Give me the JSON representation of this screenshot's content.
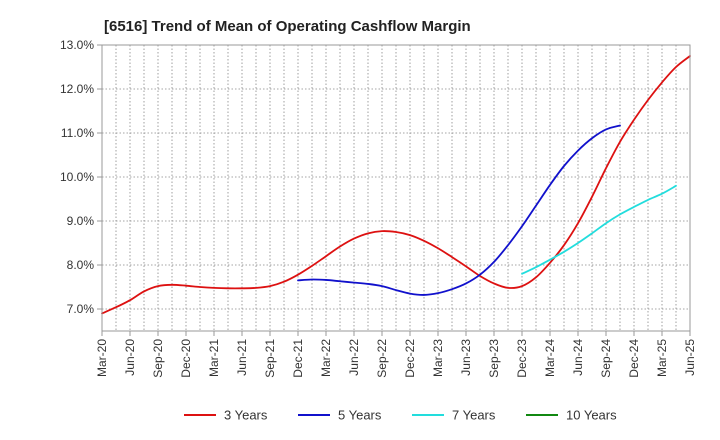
{
  "chart_data": {
    "type": "line",
    "title": "[6516]  Trend of Mean of Operating Cashflow Margin",
    "xlabel": "",
    "ylabel": "",
    "ylim": [
      6.5,
      13.0
    ],
    "yticks": [
      7.0,
      8.0,
      9.0,
      10.0,
      11.0,
      12.0,
      13.0
    ],
    "ytick_labels": [
      "7.0%",
      "8.0%",
      "9.0%",
      "10.0%",
      "11.0%",
      "12.0%",
      "13.0%"
    ],
    "x_tick_labels": [
      "Mar-20",
      "Jun-20",
      "Sep-20",
      "Dec-20",
      "Mar-21",
      "Jun-21",
      "Sep-21",
      "Dec-21",
      "Mar-22",
      "Jun-22",
      "Sep-22",
      "Dec-22",
      "Mar-23",
      "Jun-23",
      "Sep-23",
      "Dec-23",
      "Mar-24",
      "Jun-24",
      "Sep-24",
      "Dec-24",
      "Mar-25",
      "Jun-25"
    ],
    "grid": true,
    "legend_position": "bottom",
    "series": [
      {
        "name": "3 Years",
        "color": "#dd1111",
        "start_index": 0,
        "values": [
          6.9,
          7.04,
          7.2,
          7.4,
          7.52,
          7.55,
          7.53,
          7.5,
          7.48,
          7.47,
          7.47,
          7.48,
          7.52,
          7.62,
          7.78,
          7.98,
          8.2,
          8.42,
          8.6,
          8.72,
          8.77,
          8.75,
          8.68,
          8.55,
          8.38,
          8.18,
          7.97,
          7.75,
          7.58,
          7.48,
          7.52,
          7.72,
          8.05,
          8.45,
          8.95,
          9.55,
          10.2,
          10.8,
          11.3,
          11.75,
          12.15,
          12.5,
          12.75
        ]
      },
      {
        "name": "5 Years",
        "color": "#1111cc",
        "start_index": 14,
        "values": [
          7.65,
          7.67,
          7.66,
          7.63,
          7.6,
          7.57,
          7.52,
          7.43,
          7.35,
          7.32,
          7.36,
          7.45,
          7.58,
          7.78,
          8.07,
          8.45,
          8.88,
          9.35,
          9.82,
          10.25,
          10.6,
          10.88,
          11.08,
          11.17
        ]
      },
      {
        "name": "7 Years",
        "color": "#22dddd",
        "start_index": 30,
        "values": [
          7.8,
          7.95,
          8.12,
          8.3,
          8.5,
          8.72,
          8.95,
          9.15,
          9.32,
          9.48,
          9.62,
          9.8
        ]
      },
      {
        "name": "10 Years",
        "color": "#118811",
        "start_index": 0,
        "values": []
      }
    ]
  }
}
